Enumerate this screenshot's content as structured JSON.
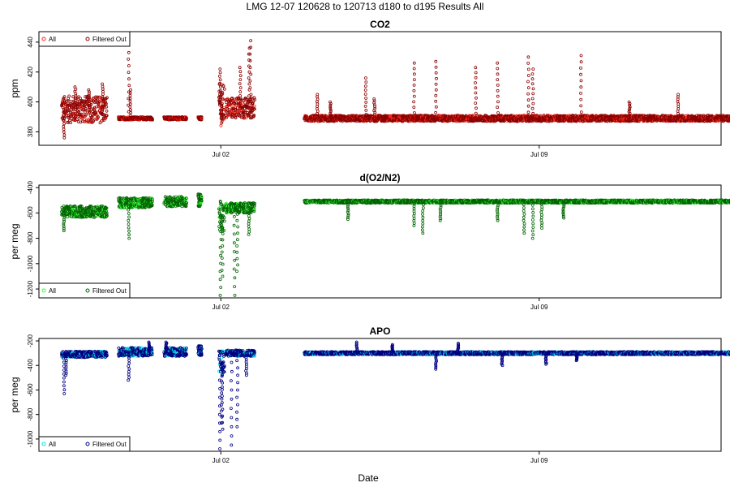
{
  "figure": {
    "title": "LMG   12-07    120628 to 120713    d180 to d195   Results All",
    "xlabel": "Date"
  },
  "chart_data": [
    {
      "type": "scatter",
      "title": "CO2",
      "ylabel": "ppm",
      "xlim": [
        "2012-06-28",
        "2012-07-13"
      ],
      "x_ticks": [
        "Jul 02",
        "Jul 09"
      ],
      "ylim": [
        371,
        447
      ],
      "y_ticks": [
        380,
        400,
        420,
        440
      ],
      "legend": {
        "position": "top-left",
        "entries": [
          "All",
          "Filtered Out"
        ]
      },
      "colors": {
        "all": "#ff2a1a",
        "filtered": "#8b0000"
      },
      "segments": [
        {
          "start": "2012-06-28T12:00",
          "end": "2012-06-29T12:00",
          "base": 395,
          "spread": 9,
          "spikes": [
            [
              0.05,
              376
            ],
            [
              0.3,
              410
            ],
            [
              0.6,
              408
            ],
            [
              0.9,
              412
            ]
          ]
        },
        {
          "start": "2012-06-29T18:00",
          "end": "2012-06-30T12:00",
          "base": 389,
          "spread": 1,
          "spikes": [
            [
              0.3,
              433
            ],
            [
              0.35,
              408
            ]
          ]
        },
        {
          "start": "2012-06-30T18:00",
          "end": "2012-07-01T06:00",
          "base": 389,
          "spread": 1,
          "spikes": []
        },
        {
          "start": "2012-07-01T12:00",
          "end": "2012-07-01T14:00",
          "base": 389,
          "spread": 1,
          "spikes": []
        },
        {
          "start": "2012-07-01T23:00",
          "end": "2012-07-02T02:00",
          "base": 398,
          "spread": 14,
          "spikes": [
            [
              0.2,
              422
            ],
            [
              0.5,
              386
            ]
          ]
        },
        {
          "start": "2012-07-02T02:30",
          "end": "2012-07-02T18:00",
          "base": 396,
          "spread": 7,
          "spikes": [
            [
              0.5,
              423
            ],
            [
              0.8,
              436
            ],
            [
              0.85,
              441
            ]
          ]
        },
        {
          "start": "2012-07-03T20:00",
          "end": "2012-07-13T12:00",
          "base": 389,
          "spread": 2,
          "spikes": [
            [
              0.03,
              405
            ],
            [
              0.06,
              400
            ],
            [
              0.14,
              416
            ],
            [
              0.16,
              402
            ],
            [
              0.25,
              426
            ],
            [
              0.3,
              427
            ],
            [
              0.39,
              423
            ],
            [
              0.44,
              426
            ],
            [
              0.51,
              430
            ],
            [
              0.52,
              422
            ],
            [
              0.63,
              431
            ],
            [
              0.74,
              400
            ],
            [
              0.85,
              405
            ]
          ]
        }
      ]
    },
    {
      "type": "scatter",
      "title": "d(O2/N2)",
      "ylabel": "per meg",
      "xlim": [
        "2012-06-28",
        "2012-07-13"
      ],
      "x_ticks": [
        "Jul 02",
        "Jul 09"
      ],
      "ylim": [
        -1270,
        -380
      ],
      "y_ticks": [
        -400,
        -600,
        -800,
        -1000,
        -1200
      ],
      "legend": {
        "position": "bottom-left",
        "entries": [
          "All",
          "Filtered Out"
        ]
      },
      "colors": {
        "all": "#33ff33",
        "filtered": "#006400"
      },
      "segments": [
        {
          "start": "2012-06-28T12:00",
          "end": "2012-06-29T12:00",
          "base": -590,
          "spread": 45,
          "spikes": [
            [
              0.05,
              -740
            ]
          ]
        },
        {
          "start": "2012-06-29T18:00",
          "end": "2012-06-30T12:00",
          "base": -520,
          "spread": 40,
          "spikes": [
            [
              0.3,
              -800
            ]
          ]
        },
        {
          "start": "2012-06-30T18:00",
          "end": "2012-07-01T06:00",
          "base": -510,
          "spread": 40,
          "spikes": []
        },
        {
          "start": "2012-07-01T12:00",
          "end": "2012-07-01T14:00",
          "base": -500,
          "spread": 50,
          "spikes": []
        },
        {
          "start": "2012-07-01T23:00",
          "end": "2012-07-02T02:00",
          "base": -620,
          "spread": 120,
          "spikes": [
            [
              0.3,
              -1250
            ],
            [
              0.6,
              -1100
            ]
          ]
        },
        {
          "start": "2012-07-02T02:30",
          "end": "2012-07-02T18:00",
          "base": -560,
          "spread": 40,
          "spikes": [
            [
              0.3,
              -1250
            ],
            [
              0.4,
              -1060
            ],
            [
              0.8,
              -770
            ]
          ]
        },
        {
          "start": "2012-07-03T20:00",
          "end": "2012-07-13T12:00",
          "base": -510,
          "spread": 12,
          "spikes": [
            [
              0.1,
              -650
            ],
            [
              0.25,
              -700
            ],
            [
              0.27,
              -760
            ],
            [
              0.31,
              -660
            ],
            [
              0.44,
              -660
            ],
            [
              0.5,
              -760
            ],
            [
              0.52,
              -800
            ],
            [
              0.54,
              -720
            ],
            [
              0.59,
              -640
            ]
          ]
        }
      ]
    },
    {
      "type": "scatter",
      "title": "APO",
      "ylabel": "per meg",
      "xlim": [
        "2012-06-28",
        "2012-07-13"
      ],
      "x_ticks": [
        "Jul 02",
        "Jul 09"
      ],
      "ylim": [
        -1100,
        -180
      ],
      "y_ticks": [
        -200,
        -400,
        -600,
        -800,
        -1000
      ],
      "legend": {
        "position": "bottom-left",
        "entries": [
          "All",
          "Filtered Out"
        ]
      },
      "colors": {
        "all": "#00e5e5",
        "filtered": "#000080"
      },
      "segments": [
        {
          "start": "2012-06-28T12:00",
          "end": "2012-06-29T12:00",
          "base": -310,
          "spread": 25,
          "spikes": [
            [
              0.05,
              -630
            ],
            [
              0.1,
              -480
            ]
          ]
        },
        {
          "start": "2012-06-29T18:00",
          "end": "2012-06-30T12:00",
          "base": -290,
          "spread": 35,
          "spikes": [
            [
              0.3,
              -520
            ],
            [
              0.9,
              -210
            ]
          ]
        },
        {
          "start": "2012-06-30T18:00",
          "end": "2012-07-01T06:00",
          "base": -290,
          "spread": 35,
          "spikes": [
            [
              0.1,
              -210
            ]
          ]
        },
        {
          "start": "2012-07-01T12:00",
          "end": "2012-07-01T14:00",
          "base": -280,
          "spread": 40,
          "spikes": []
        },
        {
          "start": "2012-07-01T23:00",
          "end": "2012-07-02T02:00",
          "base": -380,
          "spread": 100,
          "spikes": [
            [
              0.2,
              -1080
            ],
            [
              0.5,
              -870
            ],
            [
              0.6,
              -920
            ]
          ]
        },
        {
          "start": "2012-07-02T02:30",
          "end": "2012-07-02T18:00",
          "base": -300,
          "spread": 25,
          "spikes": [
            [
              0.2,
              -1050
            ],
            [
              0.4,
              -900
            ],
            [
              0.7,
              -480
            ]
          ]
        },
        {
          "start": "2012-07-03T20:00",
          "end": "2012-07-13T12:00",
          "base": -300,
          "spread": 12,
          "spikes": [
            [
              0.12,
              -210
            ],
            [
              0.2,
              -230
            ],
            [
              0.3,
              -430
            ],
            [
              0.35,
              -220
            ],
            [
              0.45,
              -400
            ],
            [
              0.55,
              -390
            ],
            [
              0.62,
              -360
            ]
          ]
        }
      ]
    }
  ]
}
